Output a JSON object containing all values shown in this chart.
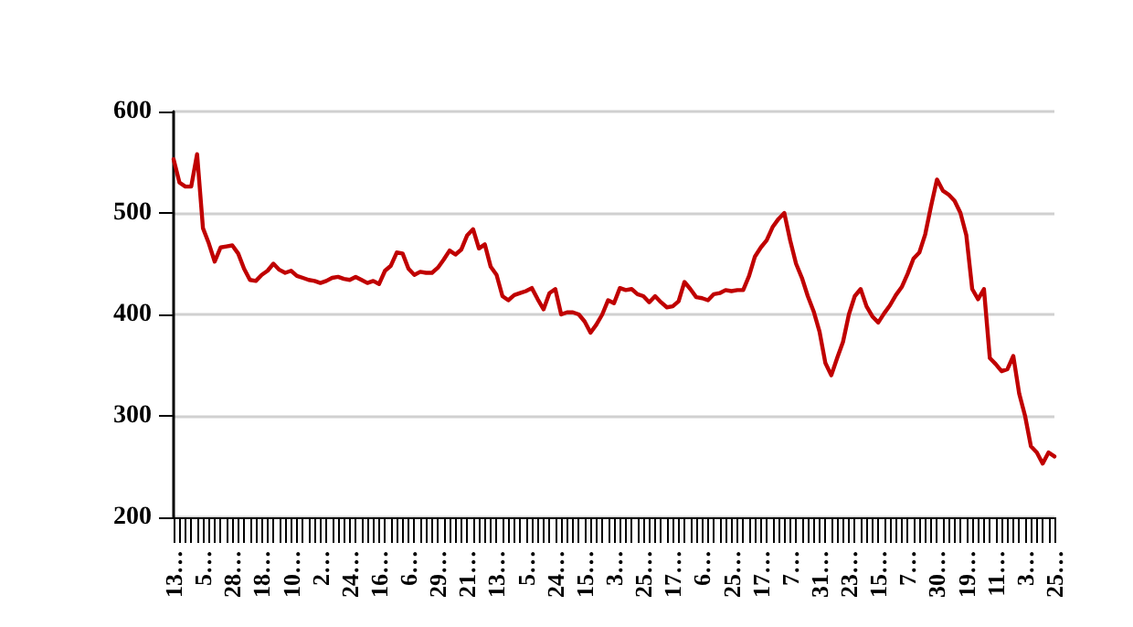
{
  "chart_data": {
    "type": "line",
    "categories": [
      "13…",
      null,
      null,
      null,
      null,
      "5…",
      null,
      null,
      null,
      null,
      "28…",
      null,
      null,
      null,
      null,
      "18…",
      null,
      null,
      null,
      null,
      "10…",
      null,
      null,
      null,
      null,
      "2…",
      null,
      null,
      null,
      null,
      "24…",
      null,
      null,
      null,
      null,
      "16…",
      null,
      null,
      null,
      null,
      "6…",
      null,
      null,
      null,
      null,
      "29…",
      null,
      null,
      null,
      null,
      "21…",
      null,
      null,
      null,
      null,
      "13…",
      null,
      null,
      null,
      null,
      "5…",
      null,
      null,
      null,
      null,
      "24…",
      null,
      null,
      null,
      null,
      "15…",
      null,
      null,
      null,
      null,
      "3…",
      null,
      null,
      null,
      null,
      "25…",
      null,
      null,
      null,
      null,
      "17…",
      null,
      null,
      null,
      null,
      "6…",
      null,
      null,
      null,
      null,
      "25…",
      null,
      null,
      null,
      null,
      "17…",
      null,
      null,
      null,
      null,
      "7…",
      null,
      null,
      null,
      null,
      "31…",
      null,
      null,
      null,
      null,
      "23…",
      null,
      null,
      null,
      null,
      "15…",
      null,
      null,
      null,
      null,
      "7…",
      null,
      null,
      null,
      null,
      "30…",
      null,
      null,
      null,
      null,
      "19…",
      null,
      null,
      null,
      null,
      "11…",
      null,
      null,
      null,
      null,
      "3…",
      null,
      null,
      null,
      null,
      "25…"
    ],
    "series": [
      {
        "color": "#c00000",
        "values": [
          553,
          530,
          526,
          526,
          558,
          485,
          470,
          452,
          466,
          467,
          468,
          460,
          445,
          434,
          433,
          439,
          443,
          450,
          444,
          441,
          443,
          438,
          436,
          434,
          433,
          431,
          433,
          436,
          437,
          435,
          434,
          437,
          434,
          431,
          433,
          430,
          443,
          448,
          461,
          460,
          445,
          439,
          442,
          441,
          441,
          446,
          454,
          463,
          459,
          464,
          478,
          484,
          465,
          469,
          447,
          439,
          418,
          414,
          419,
          421,
          423,
          426,
          415,
          405,
          421,
          425,
          400,
          402,
          402,
          400,
          393,
          382,
          390,
          400,
          414,
          411,
          426,
          424,
          425,
          420,
          418,
          412,
          418,
          412,
          407,
          408,
          413,
          432,
          425,
          417,
          416,
          414,
          420,
          421,
          424,
          423,
          424,
          424,
          438,
          457,
          466,
          473,
          486,
          494,
          500,
          473,
          450,
          436,
          418,
          403,
          383,
          352,
          340,
          357,
          373,
          400,
          418,
          425,
          408,
          398,
          392,
          401,
          409,
          419,
          427,
          440,
          455,
          461,
          479,
          507,
          533,
          522,
          518,
          512,
          500,
          478,
          425,
          415,
          425,
          357,
          351,
          344,
          346,
          359,
          322,
          300,
          270,
          264,
          253,
          264,
          260
        ]
      }
    ],
    "ylim": [
      200,
      600
    ],
    "yticks": [
      200,
      300,
      400,
      500,
      600
    ],
    "grid": "y",
    "marker": "none",
    "line_style": "solid"
  }
}
